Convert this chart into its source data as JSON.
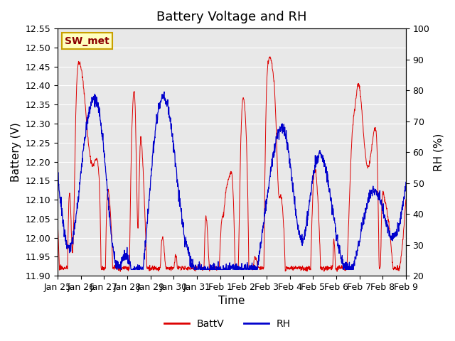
{
  "title": "Battery Voltage and RH",
  "xlabel": "Time",
  "ylabel_left": "Battery (V)",
  "ylabel_right": "RH (%)",
  "annotation": "SW_met",
  "ylim_left": [
    11.9,
    12.55
  ],
  "ylim_right": [
    20,
    100
  ],
  "yticks_left": [
    11.9,
    11.95,
    12.0,
    12.05,
    12.1,
    12.15,
    12.2,
    12.25,
    12.3,
    12.35,
    12.4,
    12.45,
    12.5,
    12.55
  ],
  "yticks_right": [
    20,
    30,
    40,
    50,
    60,
    70,
    80,
    90,
    100
  ],
  "x_tick_labels": [
    "Jan 25",
    "Jan 26",
    "Jan 27",
    "Jan 28",
    "Jan 29",
    "Jan 30",
    "Jan 31",
    "Feb 1",
    "Feb 2",
    "Feb 3",
    "Feb 4",
    "Feb 5",
    "Feb 6",
    "Feb 7",
    "Feb 8",
    "Feb 9"
  ],
  "color_batt": "#dd0000",
  "color_rh": "#0000cc",
  "legend_batt": "BattV",
  "legend_rh": "RH",
  "bg_color": "#ffffff",
  "plot_bg_color": "#e8e8e8",
  "grid_color": "#ffffff",
  "title_fontsize": 13,
  "axis_fontsize": 11,
  "tick_fontsize": 9
}
